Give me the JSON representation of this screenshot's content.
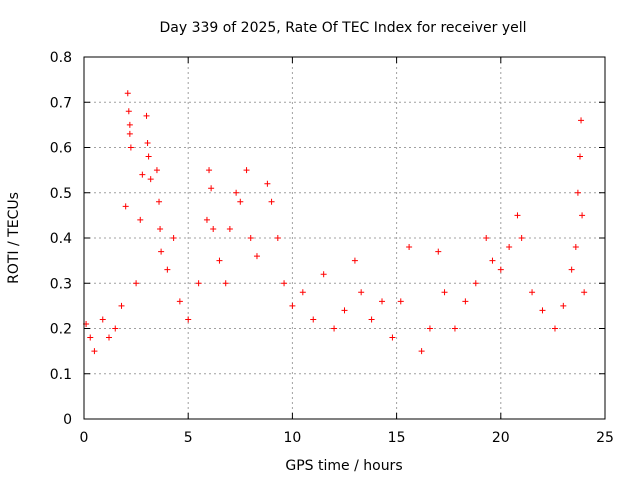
{
  "chart_data": {
    "type": "scatter",
    "title": "Day 339 of 2025, Rate Of TEC Index for receiver yell",
    "xlabel": "GPS time / hours",
    "ylabel": "ROTI / TECUs",
    "xlim": [
      0,
      25
    ],
    "ylim": [
      0,
      0.8
    ],
    "x_ticks": [
      "0",
      "5",
      "10",
      "15",
      "20",
      "25"
    ],
    "y_ticks": [
      "0",
      "0.1",
      "0.2",
      "0.3",
      "0.4",
      "0.5",
      "0.6",
      "0.7",
      "0.8"
    ],
    "grid": true,
    "marker": "+",
    "marker_color": "#ff0000",
    "series": [
      {
        "name": "ROTI",
        "points": [
          [
            0.1,
            0.21
          ],
          [
            0.3,
            0.18
          ],
          [
            0.5,
            0.15
          ],
          [
            0.9,
            0.22
          ],
          [
            1.2,
            0.18
          ],
          [
            1.5,
            0.2
          ],
          [
            1.8,
            0.25
          ],
          [
            2.0,
            0.47
          ],
          [
            2.1,
            0.72
          ],
          [
            2.15,
            0.68
          ],
          [
            2.2,
            0.65
          ],
          [
            2.2,
            0.63
          ],
          [
            2.25,
            0.6
          ],
          [
            2.5,
            0.3
          ],
          [
            2.7,
            0.44
          ],
          [
            2.8,
            0.54
          ],
          [
            3.0,
            0.67
          ],
          [
            3.05,
            0.61
          ],
          [
            3.1,
            0.58
          ],
          [
            3.2,
            0.53
          ],
          [
            3.5,
            0.55
          ],
          [
            3.6,
            0.48
          ],
          [
            3.65,
            0.42
          ],
          [
            3.7,
            0.37
          ],
          [
            4.0,
            0.33
          ],
          [
            4.3,
            0.4
          ],
          [
            4.6,
            0.26
          ],
          [
            5.0,
            0.22
          ],
          [
            5.5,
            0.3
          ],
          [
            5.9,
            0.44
          ],
          [
            6.0,
            0.55
          ],
          [
            6.1,
            0.51
          ],
          [
            6.2,
            0.42
          ],
          [
            6.5,
            0.35
          ],
          [
            6.8,
            0.3
          ],
          [
            7.0,
            0.42
          ],
          [
            7.3,
            0.5
          ],
          [
            7.5,
            0.48
          ],
          [
            7.8,
            0.55
          ],
          [
            8.0,
            0.4
          ],
          [
            8.3,
            0.36
          ],
          [
            8.8,
            0.52
          ],
          [
            9.0,
            0.48
          ],
          [
            9.3,
            0.4
          ],
          [
            9.6,
            0.3
          ],
          [
            10.0,
            0.25
          ],
          [
            10.5,
            0.28
          ],
          [
            11.0,
            0.22
          ],
          [
            11.5,
            0.32
          ],
          [
            12.0,
            0.2
          ],
          [
            12.5,
            0.24
          ],
          [
            13.0,
            0.35
          ],
          [
            13.3,
            0.28
          ],
          [
            13.8,
            0.22
          ],
          [
            14.3,
            0.26
          ],
          [
            14.8,
            0.18
          ],
          [
            15.2,
            0.26
          ],
          [
            15.6,
            0.38
          ],
          [
            16.2,
            0.15
          ],
          [
            16.6,
            0.2
          ],
          [
            17.0,
            0.37
          ],
          [
            17.3,
            0.28
          ],
          [
            17.8,
            0.2
          ],
          [
            18.3,
            0.26
          ],
          [
            18.8,
            0.3
          ],
          [
            19.3,
            0.4
          ],
          [
            19.6,
            0.35
          ],
          [
            20.0,
            0.33
          ],
          [
            20.4,
            0.38
          ],
          [
            20.8,
            0.45
          ],
          [
            21.0,
            0.4
          ],
          [
            21.5,
            0.28
          ],
          [
            22.0,
            0.24
          ],
          [
            22.6,
            0.2
          ],
          [
            23.0,
            0.25
          ],
          [
            23.4,
            0.33
          ],
          [
            23.6,
            0.38
          ],
          [
            23.7,
            0.5
          ],
          [
            23.8,
            0.58
          ],
          [
            23.85,
            0.66
          ],
          [
            23.9,
            0.45
          ],
          [
            24.0,
            0.28
          ]
        ]
      }
    ]
  }
}
